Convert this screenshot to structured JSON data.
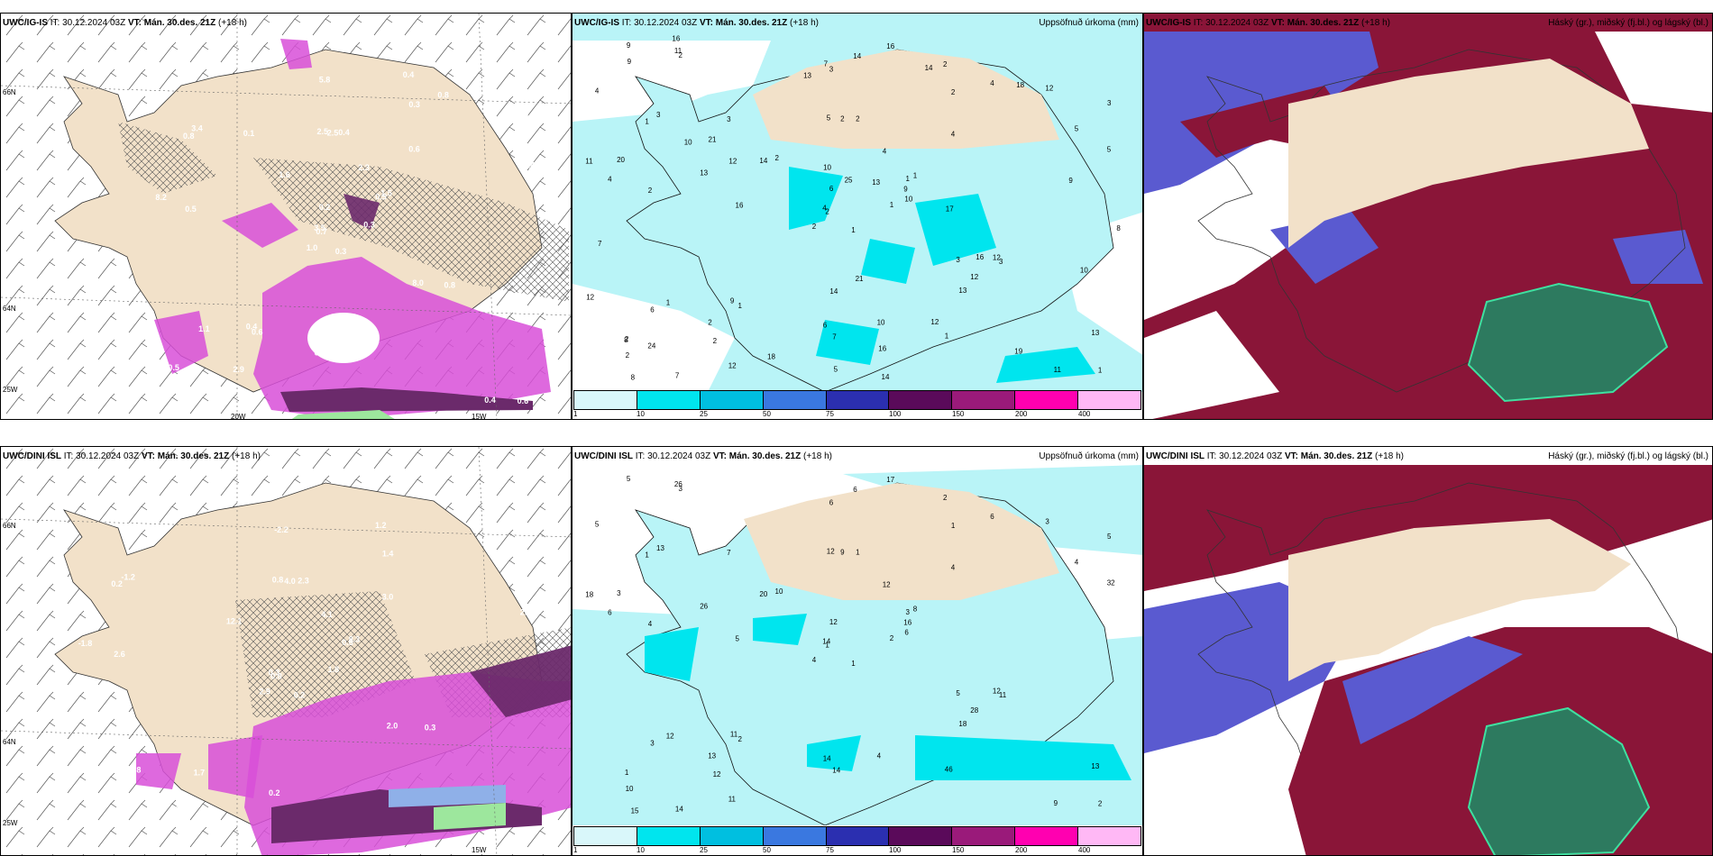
{
  "panels": {
    "p1": {
      "model": "UWC/IG-IS",
      "it": "IT: 30.12.2024 03Z",
      "vt_label": "VT:",
      "vt": "Mán. 30.des. 21Z",
      "lead": "(+18 h)",
      "right": ""
    },
    "p2": {
      "model": "UWC/IG-IS",
      "it": "IT: 30.12.2024 03Z",
      "vt_label": "VT:",
      "vt": "Mán. 30.des. 21Z",
      "lead": "(+18 h)",
      "right": "Uppsöfnuð úrkoma (mm)"
    },
    "p3": {
      "model": "UWC/IG-IS",
      "it": "IT: 30.12.2024 03Z",
      "vt_label": "VT:",
      "vt": "Mán. 30.des. 21Z",
      "lead": "(+18 h)",
      "right": "Háský (gr.), miðský (fj.bl.) og lágský (bl.)"
    },
    "p4": {
      "model": "UWC/DINI ISL",
      "it": "IT: 30.12.2024 03Z",
      "vt_label": "VT:",
      "vt": "Mán. 30.des. 21Z",
      "lead": "(+18 h)",
      "right": ""
    },
    "p5": {
      "model": "UWC/DINI ISL",
      "it": "IT: 30.12.2024 03Z",
      "vt_label": "VT:",
      "vt": "Mán. 30.des. 21Z",
      "lead": "(+18 h)",
      "right": "Uppsöfnuð úrkoma (mm)"
    },
    "p6": {
      "model": "UWC/DINI ISL",
      "it": "IT: 30.12.2024 03Z",
      "vt_label": "VT:",
      "vt": "Mán. 30.des. 21Z",
      "lead": "(+18 h)",
      "right": "Háský (gr.), miðský (fj.bl.) og lágský (bl.)"
    }
  },
  "gridlabels": {
    "lat66": "66N",
    "lat64": "64N",
    "lon25": "25W",
    "lon20": "20W",
    "lon15": "15W"
  },
  "colorbar": {
    "ticks": [
      "1",
      "10",
      "25",
      "50",
      "75",
      "100",
      "150",
      "200",
      "400"
    ],
    "colors": [
      "#d9f7fa",
      "#00e5ee",
      "#00bfe0",
      "#3a78e0",
      "#2b2fb0",
      "#5a0a5a",
      "#9a1a7a",
      "#ff00b0",
      "#ffb8f5"
    ]
  },
  "colors": {
    "land": "#f2e1c9",
    "sea_precip_light": "#b9f4f7",
    "precip_mid": "#00e5ee",
    "magenta": "#d84fd8",
    "purple": "#6b2a6b",
    "cloud_high": "#8a1538",
    "cloud_mid": "#5a5ad0",
    "cloud_low": "#2d7a5f"
  },
  "top_left": {
    "labels": [
      "0.3",
      "0.8",
      "0.7",
      "0.5",
      "0.5",
      "0.6",
      "0.4",
      "0.4",
      "0.3",
      "0.3",
      "0.5",
      "0.6",
      "0.5",
      "0.4",
      "1.0",
      "0.6",
      "0.7",
      "2.5",
      "2.3",
      "1.1",
      "1.6",
      "1.4",
      "2.9",
      "2.5",
      "1.5",
      "0.8",
      "3.4",
      "5.8",
      "8.2",
      "8.0",
      "5.4",
      "3.5",
      "0.3",
      "0.2",
      "0.1",
      "0.8",
      "0.4",
      "0.4"
    ]
  },
  "top_mid": {
    "labels": [
      "1",
      "1",
      "2",
      "2",
      "1",
      "1",
      "2",
      "2",
      "2",
      "1",
      "2",
      "1",
      "2",
      "3",
      "2",
      "4",
      "7",
      "5",
      "4",
      "1",
      "2",
      "2",
      "2",
      "2",
      "1",
      "3",
      "3",
      "3",
      "4",
      "3",
      "5",
      "4",
      "6",
      "6",
      "3",
      "4",
      "9",
      "11",
      "13",
      "12",
      "16",
      "14",
      "13",
      "13",
      "12",
      "11",
      "9",
      "8",
      "7",
      "10",
      "6",
      "5",
      "4",
      "12",
      "1",
      "2",
      "11",
      "9",
      "10",
      "12",
      "14",
      "16",
      "20",
      "21",
      "18",
      "16",
      "14",
      "13",
      "25",
      "12",
      "14",
      "18",
      "16",
      "12",
      "8",
      "9",
      "10",
      "7",
      "10",
      "16",
      "13",
      "24",
      "17",
      "10",
      "5",
      "9",
      "21",
      "19",
      "14",
      "12",
      "7",
      "8"
    ]
  },
  "bot_left": {
    "labels": [
      "0.2",
      "0.2",
      "0.8",
      "0.6",
      "0.6",
      "1.7",
      "1.2",
      "2.3",
      "1.4",
      "1.8",
      "1.3",
      "1.5",
      "2.6",
      "2.3",
      "2.9",
      "3.0",
      "0.1",
      "0.8",
      "4.1",
      "6.8",
      "12.1",
      "11.0",
      "13.3",
      "4.0",
      "8.3",
      "0.3",
      "-1.2",
      "-2.2",
      "-1.8",
      "2.0",
      "2.7",
      "0.3",
      "0.2"
    ]
  },
  "bot_mid": {
    "labels": [
      "1",
      "1",
      "1",
      "1",
      "3",
      "2",
      "2",
      "1",
      "1",
      "2",
      "3",
      "2",
      "4",
      "5",
      "4",
      "4",
      "14",
      "12",
      "12",
      "12",
      "10",
      "10",
      "12",
      "9",
      "8",
      "11",
      "13",
      "6",
      "6",
      "5",
      "32",
      "14",
      "14",
      "12",
      "7",
      "6",
      "11",
      "9",
      "13",
      "12",
      "17",
      "20",
      "26",
      "18",
      "11",
      "18",
      "16",
      "15",
      "14",
      "6",
      "3",
      "4",
      "5",
      "28",
      "46",
      "13",
      "26",
      "5",
      "4",
      "3",
      "6",
      "5",
      "3"
    ]
  }
}
